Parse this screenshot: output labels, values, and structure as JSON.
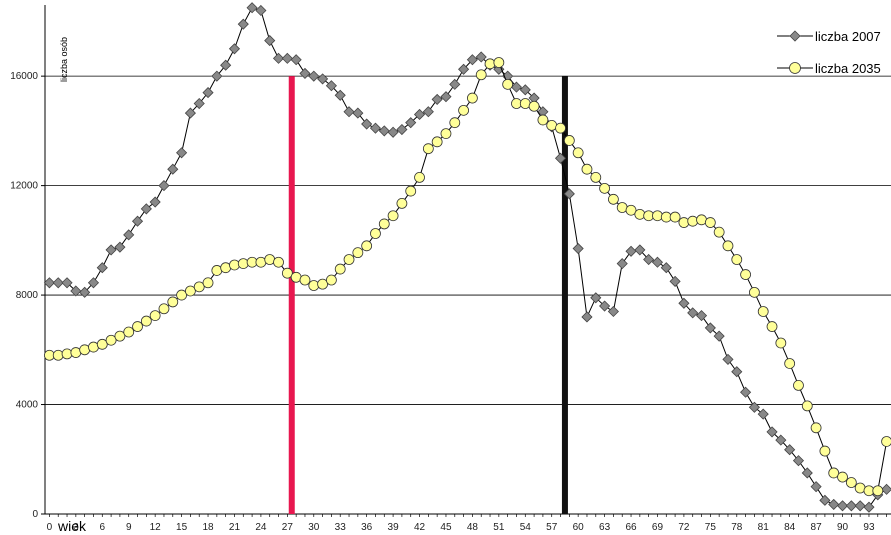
{
  "chart_data": {
    "type": "line",
    "xlabel": "wiek",
    "ylabel": "liczba osób",
    "x": [
      0,
      1,
      2,
      3,
      4,
      5,
      6,
      7,
      8,
      9,
      10,
      11,
      12,
      13,
      14,
      15,
      16,
      17,
      18,
      19,
      20,
      21,
      22,
      23,
      24,
      25,
      26,
      27,
      28,
      29,
      30,
      31,
      32,
      33,
      34,
      35,
      36,
      37,
      38,
      39,
      40,
      41,
      42,
      43,
      44,
      45,
      46,
      47,
      48,
      49,
      50,
      51,
      52,
      53,
      54,
      55,
      56,
      57,
      58,
      59,
      60,
      61,
      62,
      63,
      64,
      65,
      66,
      67,
      68,
      69,
      70,
      71,
      72,
      73,
      74,
      75,
      76,
      77,
      78,
      79,
      80,
      81,
      82,
      83,
      84,
      85,
      86,
      87,
      88,
      89,
      90,
      91,
      92,
      93,
      94,
      95
    ],
    "xticks": [
      0,
      3,
      6,
      9,
      12,
      15,
      18,
      21,
      24,
      27,
      30,
      33,
      36,
      39,
      42,
      45,
      48,
      51,
      54,
      57,
      60,
      63,
      66,
      69,
      72,
      75,
      78,
      81,
      84,
      87,
      90,
      93
    ],
    "yticks": [
      0,
      4000,
      8000,
      12000,
      16000
    ],
    "ylim": [
      0,
      18600
    ],
    "xlim": [
      -0.5,
      95.5
    ],
    "grid": "horizontal",
    "legend_position": "top-right",
    "series": [
      {
        "name": "liczba 2007",
        "color": "#888888",
        "marker": "diamond",
        "values": [
          8450,
          8450,
          8450,
          8150,
          8100,
          8450,
          9000,
          9650,
          9750,
          10200,
          10700,
          11150,
          11400,
          12000,
          12600,
          13200,
          14650,
          15000,
          15400,
          16000,
          16400,
          17000,
          17900,
          18500,
          18400,
          17300,
          16650,
          16650,
          16600,
          16100,
          16000,
          15900,
          15650,
          15300,
          14700,
          14650,
          14250,
          14100,
          14000,
          13950,
          14050,
          14300,
          14600,
          14700,
          15150,
          15250,
          15700,
          16250,
          16600,
          16700,
          16400,
          16250,
          16000,
          15600,
          15500,
          15200,
          14700,
          14150,
          13000,
          11700,
          9700,
          7200,
          7900,
          7600,
          7400,
          9150,
          9600,
          9650,
          9300,
          9200,
          9000,
          8500,
          7700,
          7350,
          7250,
          6800,
          6500,
          5650,
          5200,
          4450,
          3900,
          3650,
          3000,
          2700,
          2350,
          1950,
          1500,
          1000,
          500,
          350,
          300,
          300,
          300,
          250,
          700,
          900
        ]
      },
      {
        "name": "liczba 2035",
        "color": "#ffff99",
        "marker": "circle",
        "values": [
          5800,
          5800,
          5850,
          5900,
          6000,
          6100,
          6200,
          6350,
          6500,
          6650,
          6850,
          7050,
          7250,
          7500,
          7750,
          8000,
          8150,
          8300,
          8450,
          8900,
          9000,
          9100,
          9150,
          9200,
          9200,
          9300,
          9200,
          8800,
          8650,
          8550,
          8350,
          8400,
          8550,
          8950,
          9300,
          9550,
          9800,
          10250,
          10600,
          10900,
          11350,
          11800,
          12300,
          13350,
          13600,
          13900,
          14300,
          14750,
          15200,
          16050,
          16450,
          16500,
          15700,
          15000,
          15000,
          14900,
          14400,
          14200,
          14100,
          13650,
          13200,
          12600,
          12300,
          11900,
          11500,
          11200,
          11100,
          10950,
          10900,
          10900,
          10850,
          10850,
          10650,
          10700,
          10750,
          10650,
          10300,
          9800,
          9300,
          8750,
          8100,
          7400,
          6850,
          6250,
          5500,
          4700,
          3950,
          3150,
          2300,
          1500,
          1350,
          1150,
          950,
          850,
          850,
          2650
        ]
      }
    ],
    "annotations": [
      {
        "type": "vertical-line",
        "x": 27.5,
        "color": "#e8174f"
      },
      {
        "type": "vertical-line",
        "x": 58.5,
        "color": "#111111"
      }
    ]
  }
}
